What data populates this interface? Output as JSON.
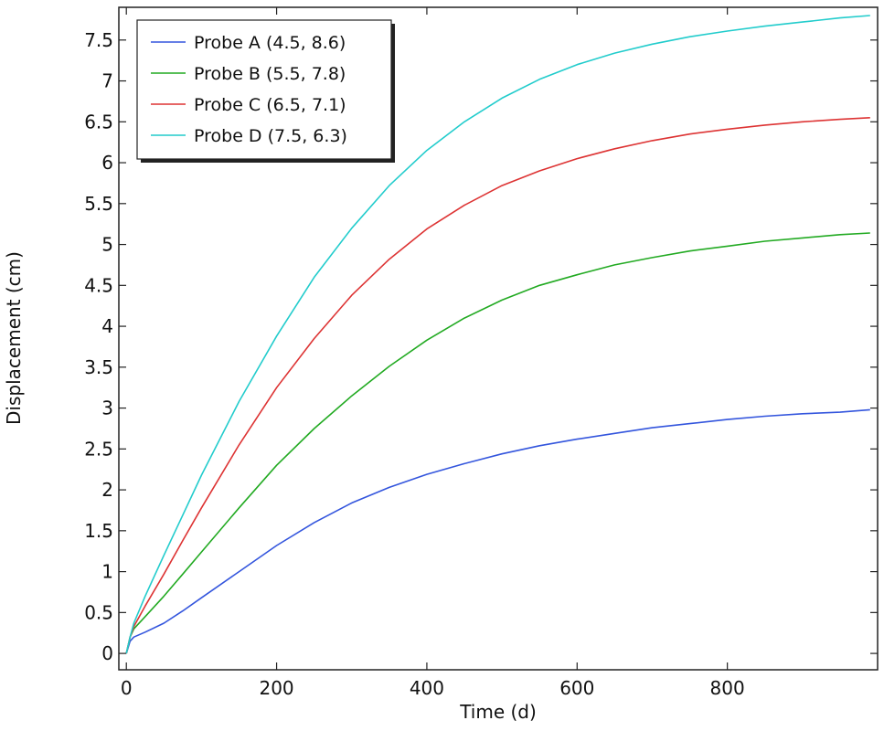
{
  "chart_data": {
    "type": "line",
    "title": "",
    "xlabel": "Time (d)",
    "ylabel": "Displacement (cm)",
    "xlim": [
      -10,
      1000
    ],
    "ylim": [
      -0.2,
      7.9
    ],
    "x_ticks": [
      0,
      200,
      400,
      600,
      800
    ],
    "x_tick_labels": [
      "0",
      "200",
      "400",
      "600",
      "800"
    ],
    "y_ticks": [
      0,
      0.5,
      1,
      1.5,
      2,
      2.5,
      3,
      3.5,
      4,
      4.5,
      5,
      5.5,
      6,
      6.5,
      7,
      7.5
    ],
    "y_tick_labels": [
      "0",
      "0.5",
      "1",
      "1.5",
      "2",
      "2.5",
      "3",
      "3.5",
      "4",
      "4.5",
      "5",
      "5.5",
      "6",
      "6.5",
      "7",
      "7.5"
    ],
    "grid": false,
    "legend_position": "top-left",
    "x": [
      0,
      5,
      10,
      25,
      50,
      75,
      100,
      150,
      200,
      250,
      300,
      350,
      400,
      450,
      500,
      550,
      600,
      650,
      700,
      750,
      800,
      850,
      900,
      950,
      990
    ],
    "series": [
      {
        "name": "Probe A (4.5, 8.6)",
        "color": "#3355dd",
        "values": [
          0.0,
          0.15,
          0.2,
          0.26,
          0.37,
          0.52,
          0.68,
          1.0,
          1.32,
          1.6,
          1.84,
          2.03,
          2.19,
          2.32,
          2.44,
          2.54,
          2.62,
          2.69,
          2.76,
          2.81,
          2.86,
          2.9,
          2.93,
          2.95,
          2.98
        ]
      },
      {
        "name": "Probe B (5.5, 7.8)",
        "color": "#22aa22",
        "values": [
          0.0,
          0.2,
          0.3,
          0.45,
          0.7,
          0.97,
          1.24,
          1.78,
          2.3,
          2.75,
          3.15,
          3.51,
          3.83,
          4.1,
          4.32,
          4.5,
          4.63,
          4.75,
          4.84,
          4.92,
          4.98,
          5.04,
          5.08,
          5.12,
          5.14
        ]
      },
      {
        "name": "Probe C (6.5, 7.1)",
        "color": "#dd3333",
        "values": [
          0.0,
          0.2,
          0.33,
          0.58,
          0.97,
          1.38,
          1.78,
          2.55,
          3.25,
          3.85,
          4.38,
          4.82,
          5.19,
          5.48,
          5.72,
          5.9,
          6.05,
          6.17,
          6.27,
          6.35,
          6.41,
          6.46,
          6.5,
          6.53,
          6.55
        ]
      },
      {
        "name": "Probe D (7.5, 6.3)",
        "color": "#22cccc",
        "values": [
          0.0,
          0.2,
          0.37,
          0.7,
          1.2,
          1.69,
          2.18,
          3.08,
          3.88,
          4.6,
          5.2,
          5.72,
          6.15,
          6.5,
          6.79,
          7.02,
          7.2,
          7.34,
          7.45,
          7.54,
          7.61,
          7.67,
          7.72,
          7.77,
          7.8
        ]
      }
    ]
  }
}
